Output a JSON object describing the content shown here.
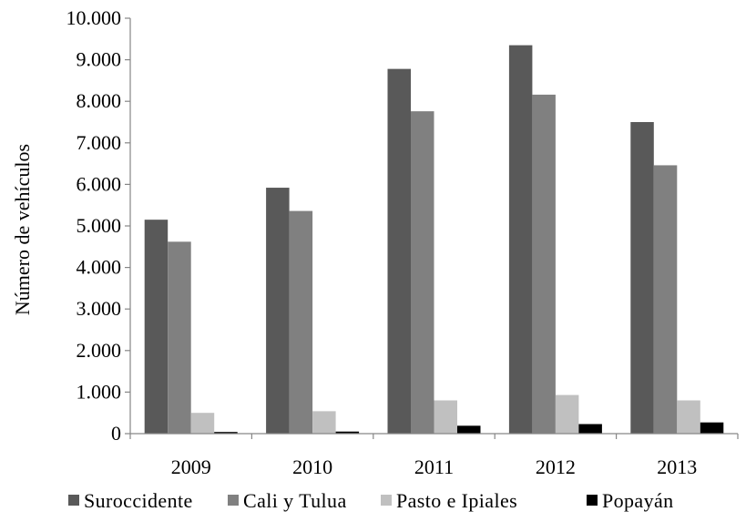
{
  "chart_data": {
    "type": "bar",
    "title": "",
    "xlabel": "",
    "ylabel": "Número de vehículos",
    "categories": [
      "2009",
      "2010",
      "2011",
      "2012",
      "2013"
    ],
    "ylim": [
      0,
      10000
    ],
    "yticks": [
      0,
      1000,
      2000,
      3000,
      4000,
      5000,
      6000,
      7000,
      8000,
      9000,
      10000
    ],
    "ytick_labels": [
      "0",
      "1.000",
      "2.000",
      "3.000",
      "4.000",
      "5.000",
      "6.000",
      "7.000",
      "8.000",
      "9.000",
      "10.000"
    ],
    "grid": false,
    "legend_position": "bottom",
    "series": [
      {
        "name": "Suroccidente",
        "color": "#595959",
        "values": [
          5150,
          5920,
          8780,
          9350,
          7500
        ]
      },
      {
        "name": "Cali y Tulua",
        "color": "#808080",
        "values": [
          4620,
          5360,
          7760,
          8160,
          6460
        ]
      },
      {
        "name": "Pasto e Ipiales",
        "color": "#c0c0c0",
        "values": [
          500,
          540,
          800,
          930,
          800
        ]
      },
      {
        "name": "Popayán",
        "color": "#000000",
        "values": [
          40,
          50,
          190,
          230,
          270
        ]
      }
    ]
  }
}
